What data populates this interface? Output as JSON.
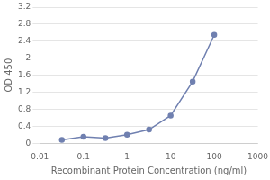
{
  "chart_data": {
    "type": "line",
    "x": [
      0.032,
      0.1,
      0.32,
      1,
      3.2,
      10,
      32,
      100
    ],
    "series": [
      {
        "color": "#7080b0",
        "marker": "circle",
        "values": [
          0.08,
          0.15,
          0.12,
          0.2,
          0.32,
          0.65,
          1.45,
          2.55
        ]
      }
    ],
    "xlabel": "Recombinant Protein Concentration (ng/ml)",
    "ylabel": "OD 450",
    "log": "x",
    "xlim": [
      0.01,
      1000
    ],
    "xticks": [
      0.01,
      0.1,
      1,
      10,
      100,
      1000
    ],
    "ylim": [
      0,
      3.2
    ],
    "yticks": [
      0,
      0.4,
      0.8,
      1.2,
      1.6,
      2.0,
      2.4,
      2.8,
      3.2
    ],
    "grid": "y"
  }
}
